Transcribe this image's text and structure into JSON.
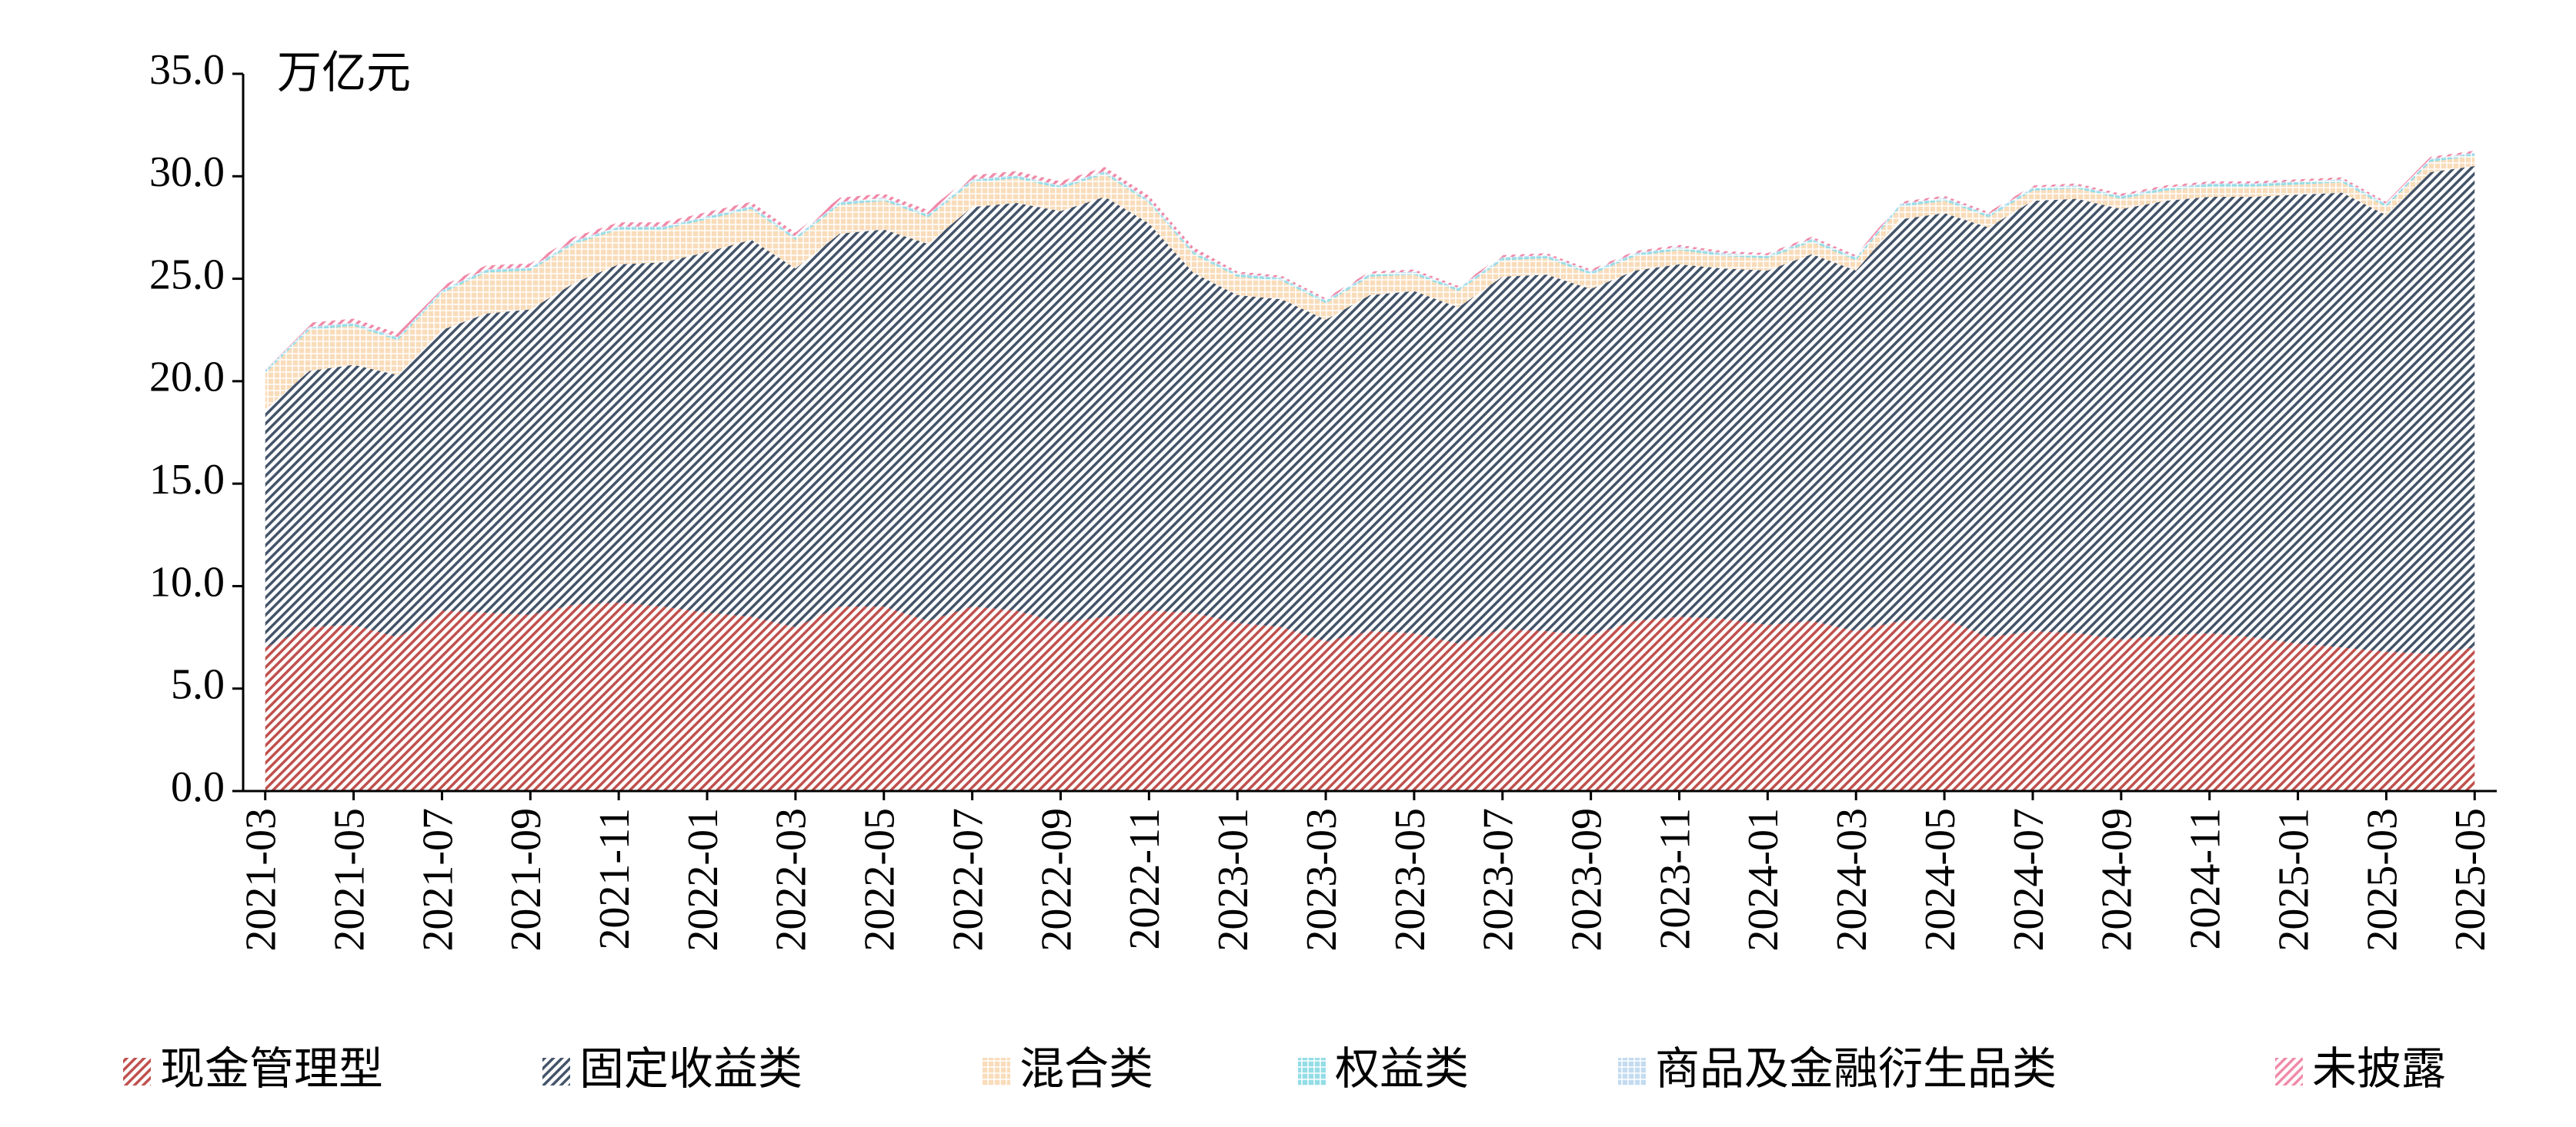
{
  "chart_data": {
    "type": "stacked-area",
    "unit_label": "万亿元",
    "categories": [
      "2021-03",
      null,
      "2021-05",
      null,
      "2021-07",
      null,
      "2021-09",
      null,
      "2021-11",
      null,
      "2022-01",
      null,
      "2022-03",
      null,
      "2022-05",
      null,
      "2022-07",
      null,
      "2022-09",
      null,
      "2022-11",
      null,
      "2023-01",
      null,
      "2023-03",
      null,
      "2023-05",
      null,
      "2023-07",
      null,
      "2023-09",
      null,
      "2023-11",
      null,
      "2024-01",
      null,
      "2024-03",
      null,
      "2024-05",
      null,
      "2024-07",
      null,
      "2024-09",
      null,
      "2024-11",
      null,
      "2025-01",
      null,
      "2025-03",
      null,
      "2025-05"
    ],
    "series": [
      {
        "name": "现金管理型",
        "color": "#c0504d",
        "values": [
          7.0,
          8.0,
          8.1,
          7.5,
          8.8,
          8.7,
          8.6,
          9.1,
          9.2,
          9.0,
          8.7,
          8.5,
          8.0,
          9.0,
          9.0,
          8.3,
          9.0,
          8.8,
          8.2,
          8.5,
          8.8,
          8.7,
          8.2,
          8.0,
          7.3,
          7.8,
          7.7,
          7.2,
          7.9,
          7.8,
          7.6,
          8.3,
          8.5,
          8.4,
          8.1,
          8.3,
          7.8,
          8.3,
          8.4,
          7.5,
          7.8,
          7.7,
          7.4,
          7.6,
          7.7,
          7.5,
          7.2,
          7.0,
          6.8,
          6.7,
          7.0
        ]
      },
      {
        "name": "固定收益类",
        "color": "#44546a",
        "values": [
          11.6,
          12.5,
          12.7,
          12.8,
          13.7,
          14.6,
          14.9,
          15.7,
          16.5,
          16.8,
          17.6,
          18.4,
          17.5,
          18.2,
          18.4,
          18.4,
          19.5,
          19.9,
          20.1,
          20.5,
          18.9,
          16.6,
          16.0,
          16.0,
          15.7,
          16.4,
          16.7,
          16.4,
          17.2,
          17.4,
          16.9,
          17.1,
          17.2,
          17.1,
          17.3,
          17.9,
          17.6,
          19.6,
          19.8,
          20.0,
          21.0,
          21.2,
          21.0,
          21.2,
          21.3,
          21.5,
          21.9,
          22.2,
          21.3,
          23.5,
          23.5
        ]
      },
      {
        "name": "混合类",
        "color": "#f2b266",
        "values": [
          1.8,
          2.0,
          1.9,
          1.7,
          1.8,
          2.0,
          1.9,
          1.9,
          1.7,
          1.6,
          1.6,
          1.5,
          1.4,
          1.4,
          1.4,
          1.3,
          1.2,
          1.2,
          1.1,
          1.1,
          1.0,
          0.9,
          0.9,
          0.9,
          0.8,
          0.9,
          0.8,
          0.8,
          0.8,
          0.8,
          0.7,
          0.7,
          0.7,
          0.6,
          0.6,
          0.6,
          0.5,
          0.6,
          0.6,
          0.5,
          0.5,
          0.5,
          0.5,
          0.5,
          0.5,
          0.5,
          0.5,
          0.5,
          0.4,
          0.5,
          0.5
        ]
      },
      {
        "name": "权益类",
        "color": "#4bc6d6",
        "values": [
          0.1,
          0.1,
          0.1,
          0.1,
          0.1,
          0.1,
          0.1,
          0.1,
          0.1,
          0.1,
          0.1,
          0.1,
          0.1,
          0.1,
          0.1,
          0.1,
          0.1,
          0.1,
          0.1,
          0.1,
          0.1,
          0.1,
          0.1,
          0.1,
          0.1,
          0.1,
          0.1,
          0.1,
          0.1,
          0.1,
          0.1,
          0.1,
          0.1,
          0.1,
          0.1,
          0.1,
          0.1,
          0.1,
          0.1,
          0.1,
          0.1,
          0.1,
          0.1,
          0.1,
          0.1,
          0.1,
          0.1,
          0.1,
          0.1,
          0.1,
          0.1
        ]
      },
      {
        "name": "商品及金融衍生品类",
        "color": "#9dc3e6",
        "values": [
          0.05,
          0.05,
          0.05,
          0.05,
          0.05,
          0.05,
          0.05,
          0.05,
          0.05,
          0.05,
          0.05,
          0.05,
          0.05,
          0.05,
          0.05,
          0.05,
          0.05,
          0.05,
          0.05,
          0.05,
          0.05,
          0.05,
          0.05,
          0.05,
          0.05,
          0.05,
          0.05,
          0.05,
          0.05,
          0.05,
          0.05,
          0.05,
          0.05,
          0.05,
          0.05,
          0.05,
          0.05,
          0.05,
          0.05,
          0.05,
          0.05,
          0.05,
          0.05,
          0.05,
          0.05,
          0.05,
          0.05,
          0.05,
          0.05,
          0.05,
          0.05
        ]
      },
      {
        "name": "未披露",
        "color": "#f08aa8",
        "values": [
          0.2,
          0.2,
          0.2,
          0.2,
          0.2,
          0.2,
          0.2,
          0.2,
          0.2,
          0.2,
          0.2,
          0.2,
          0.2,
          0.2,
          0.2,
          0.2,
          0.2,
          0.2,
          0.2,
          0.2,
          0.2,
          0.2,
          0.1,
          0.1,
          0.1,
          0.1,
          0.1,
          0.1,
          0.1,
          0.1,
          0.1,
          0.1,
          0.1,
          0.1,
          0.1,
          0.1,
          0.1,
          0.1,
          0.1,
          0.1,
          0.1,
          0.1,
          0.1,
          0.1,
          0.1,
          0.1,
          0.1,
          0.1,
          0.1,
          0.1,
          0.1
        ]
      }
    ],
    "ylim": [
      0,
      35
    ],
    "yticks": [
      {
        "value": 0,
        "label": "0.0"
      },
      {
        "value": 5,
        "label": "5.0"
      },
      {
        "value": 10,
        "label": "10.0"
      },
      {
        "value": 15,
        "label": "15.0"
      },
      {
        "value": 20,
        "label": "20.0"
      },
      {
        "value": 25,
        "label": "25.0"
      },
      {
        "value": 30,
        "label": "30.0"
      },
      {
        "value": 35,
        "label": "35.0"
      }
    ],
    "legend": "bottom"
  }
}
